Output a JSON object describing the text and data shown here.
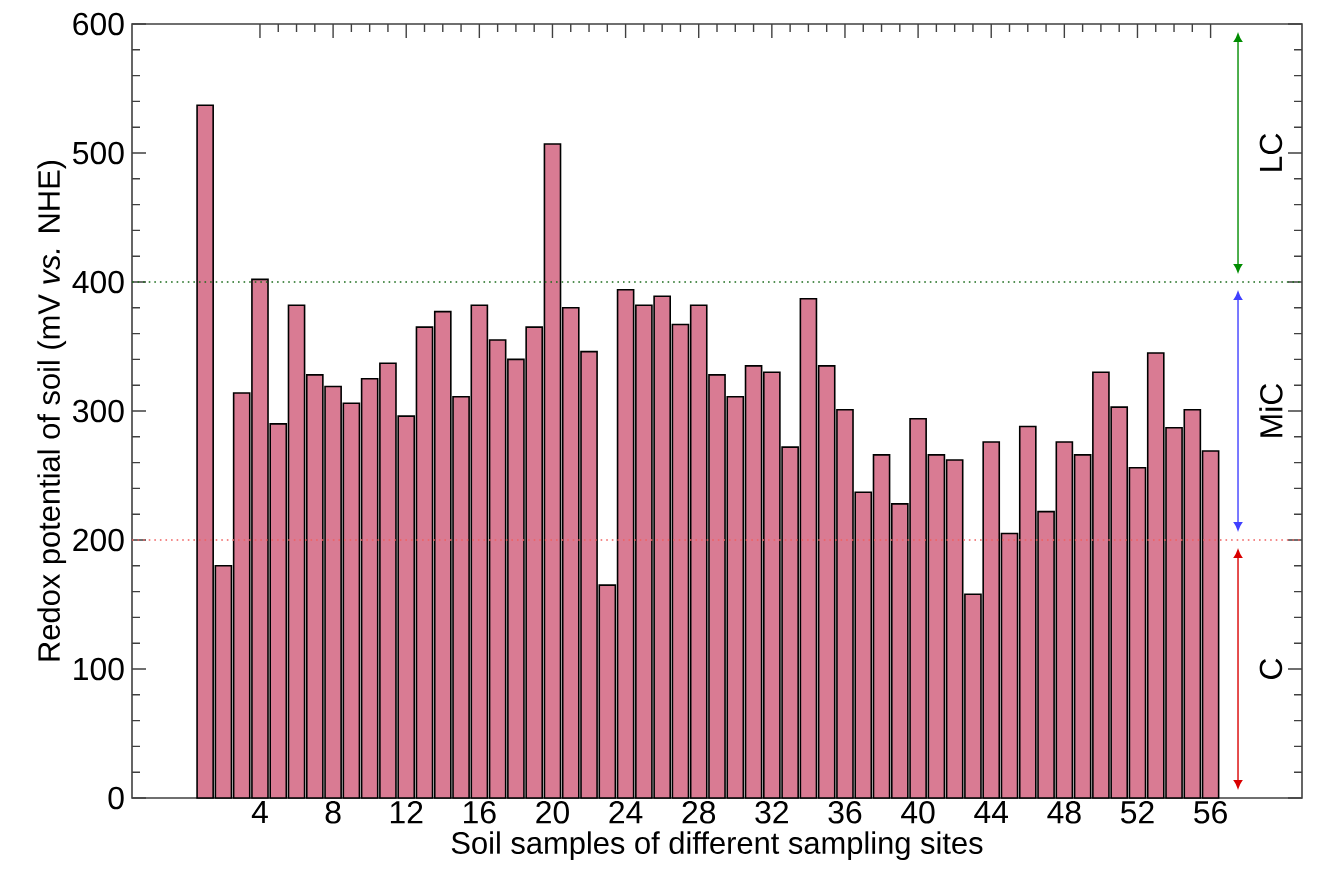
{
  "chart_data": {
    "type": "bar",
    "xlabel": "Soil samples of different sampling sites",
    "ylabel": "Redox potential of soil (mV *vs.* NHE)",
    "x": [
      1,
      2,
      3,
      4,
      5,
      6,
      7,
      8,
      9,
      10,
      11,
      12,
      13,
      14,
      15,
      16,
      17,
      18,
      19,
      20,
      21,
      22,
      23,
      24,
      25,
      26,
      27,
      28,
      29,
      30,
      31,
      32,
      33,
      34,
      35,
      36,
      37,
      38,
      39,
      40,
      41,
      42,
      43,
      44,
      45,
      46,
      47,
      48,
      49,
      50,
      51,
      52,
      53,
      54,
      55,
      56
    ],
    "values": [
      537,
      180,
      314,
      402,
      290,
      382,
      328,
      319,
      306,
      325,
      337,
      296,
      365,
      377,
      311,
      382,
      355,
      340,
      365,
      507,
      380,
      346,
      165,
      394,
      382,
      389,
      367,
      382,
      328,
      311,
      335,
      330,
      272,
      387,
      335,
      301,
      237,
      266,
      228,
      294,
      266,
      262,
      158,
      276,
      205,
      288,
      222,
      276,
      266,
      330,
      303,
      256,
      345,
      287,
      301,
      269
    ],
    "color": "#d97b93",
    "xlim": [
      -3,
      61
    ],
    "ylim": [
      0,
      600
    ],
    "xticks": [
      4,
      8,
      12,
      16,
      20,
      24,
      28,
      32,
      36,
      40,
      44,
      48,
      52,
      56
    ],
    "yticks": [
      0,
      100,
      200,
      300,
      400,
      500,
      600
    ],
    "ref_lines": [
      {
        "axis": "y",
        "value": 400,
        "color": "#1a6b1a",
        "line_style": "dotted"
      },
      {
        "axis": "y",
        "value": 200,
        "color": "#f06060",
        "line_style": "dotted"
      }
    ],
    "annotations": [
      "LC",
      "MiC",
      "C"
    ]
  }
}
